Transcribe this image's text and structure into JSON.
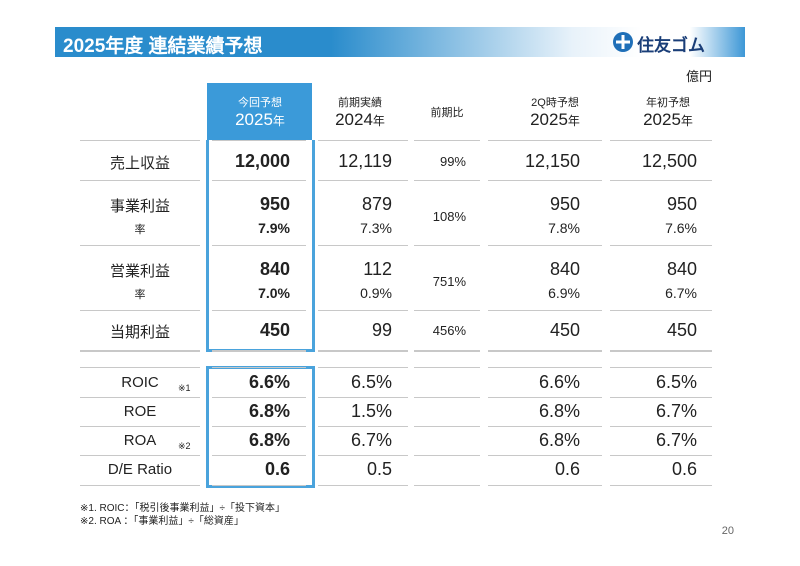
{
  "header": {
    "title": "2025年度 連結業績予想",
    "logo": "住友ゴム",
    "unit": "億円"
  },
  "columns": [
    {
      "label": "今回予想",
      "year": "2025",
      "suffix": "年"
    },
    {
      "label": "前期実績",
      "year": "2024",
      "suffix": "年"
    },
    {
      "label": "前期比"
    },
    {
      "label": "2Q時予想",
      "year": "2025",
      "suffix": "年"
    },
    {
      "label": "年初予想",
      "year": "2025",
      "suffix": "年"
    }
  ],
  "table": {
    "rows": [
      {
        "label": "売上収益",
        "cells": [
          "12,000",
          "12,119",
          "99%",
          "12,150",
          "12,500"
        ]
      },
      {
        "label": "事業利益",
        "cells": [
          "950",
          "879",
          "108%",
          "950",
          "950"
        ],
        "sub_label": "率",
        "sub_cells": [
          "7.9%",
          "7.3%",
          null,
          "7.8%",
          "7.6%"
        ]
      },
      {
        "label": "営業利益",
        "cells": [
          "840",
          "112",
          "751%",
          "840",
          "840"
        ],
        "sub_label": "率",
        "sub_cells": [
          "7.0%",
          "0.9%",
          null,
          "6.9%",
          "6.7%"
        ]
      },
      {
        "label": "当期利益",
        "cells": [
          "450",
          "99",
          "456%",
          "450",
          "450"
        ]
      }
    ],
    "kpi_rows": [
      {
        "label": "ROIC",
        "note": "※1",
        "cells": [
          "6.6%",
          "6.5%",
          null,
          "6.6%",
          "6.5%"
        ]
      },
      {
        "label": "ROE",
        "cells": [
          "6.8%",
          "1.5%",
          null,
          "6.8%",
          "6.7%"
        ]
      },
      {
        "label": "ROA",
        "note": "※2",
        "cells": [
          "6.8%",
          "6.7%",
          null,
          "6.8%",
          "6.7%"
        ]
      },
      {
        "label": "D/E Ratio",
        "cells": [
          "0.6",
          "0.5",
          null,
          "0.6",
          "0.6"
        ]
      }
    ]
  },
  "footnotes": [
    "※1. ROIC：「税引後事業利益」÷「投下資本」",
    "※2. ROA ：「事業利益」÷「総資産」"
  ],
  "page_number": "20"
}
